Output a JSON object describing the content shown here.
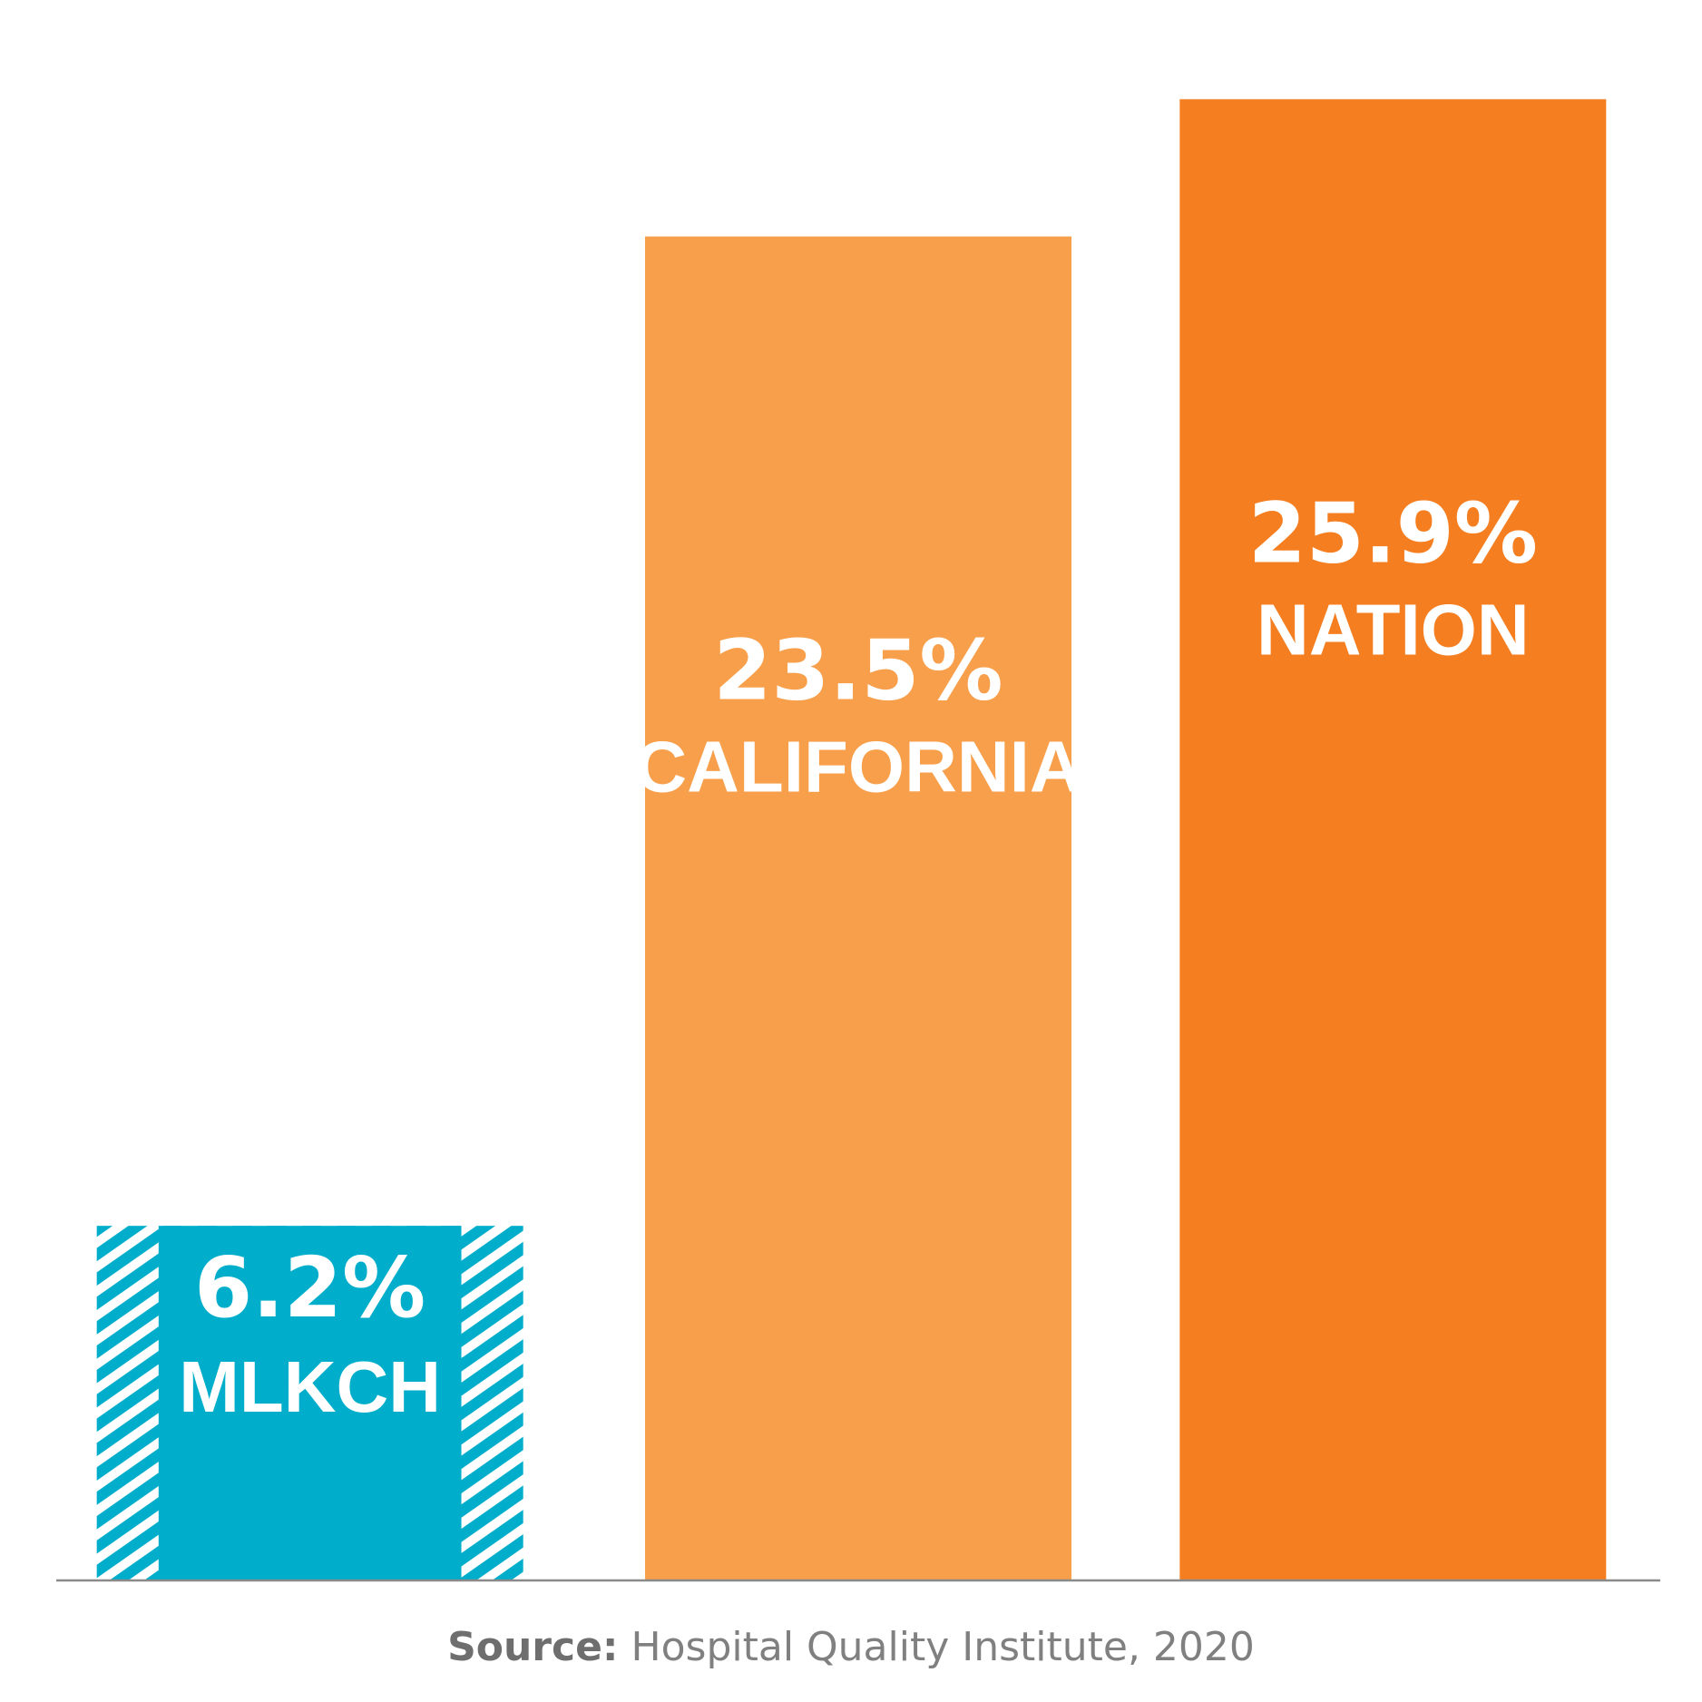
{
  "chart_data": {
    "type": "bar",
    "categories": [
      "MLKCH",
      "CALIFORNIA",
      "NATION"
    ],
    "values": [
      6.2,
      23.5,
      25.9
    ],
    "value_labels": [
      "6.2%",
      "23.5%",
      "25.9%"
    ],
    "ylim": [
      0,
      27
    ],
    "grid": false,
    "legend": "none",
    "colors": [
      "#00AECB",
      "#F89F4B",
      "#F47E20"
    ],
    "hatch_first_bar_edges": true
  },
  "source": {
    "label": "Source:",
    "text": " Hospital Quality Institute, 2020"
  }
}
